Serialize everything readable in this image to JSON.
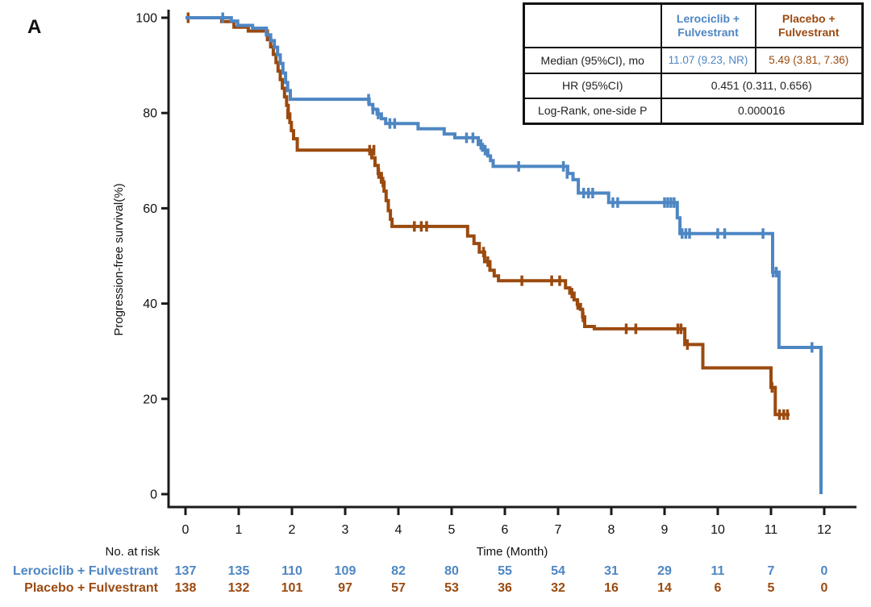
{
  "panel": {
    "label": "A"
  },
  "colors": {
    "lerociclib": "#4E86C3",
    "placebo": "#9B4A0F",
    "axis": "#1A1A1A"
  },
  "stats_table": {
    "arm1_header_line1": "Lerociclib +",
    "arm1_header_line2": "Fulvestrant",
    "arm2_header_line1": "Placebo +",
    "arm2_header_line2": "Fulvestrant",
    "row_median_label": "Median (95%CI), mo",
    "row_median_arm1": "11.07 (9.23, NR)",
    "row_median_arm2": "5.49 (3.81, 7.36)",
    "row_hr_label": "HR (95%CI)",
    "row_hr_value": "0.451 (0.311, 0.656)",
    "row_logrank_label": "Log-Rank, one-side P",
    "row_logrank_value": "0.000016"
  },
  "chart_data": {
    "type": "line",
    "subtype": "kaplan-meier-step",
    "xlabel": "Time (Month)",
    "ylabel": "Progression-free survival(%)",
    "xlim": [
      0,
      12.6
    ],
    "ylim": [
      0,
      100
    ],
    "xticks": [
      0,
      1,
      2,
      3,
      4,
      5,
      6,
      7,
      8,
      9,
      10,
      11,
      12
    ],
    "yticks": [
      0,
      20,
      40,
      60,
      80,
      100
    ],
    "grid": false,
    "series": [
      {
        "name": "Placebo + Fulvestrant",
        "color": "#9B4A0F",
        "median_95ci_mo": "5.49 (3.81, 7.36)",
        "steps": [
          [
            0,
            100
          ],
          [
            0.68,
            99.2
          ],
          [
            0.91,
            98
          ],
          [
            1.18,
            97.2
          ],
          [
            1.54,
            95.4
          ],
          [
            1.6,
            93.9
          ],
          [
            1.65,
            92.3
          ],
          [
            1.7,
            90.6
          ],
          [
            1.74,
            88.8
          ],
          [
            1.78,
            87
          ],
          [
            1.82,
            85.2
          ],
          [
            1.86,
            83.4
          ],
          [
            1.9,
            81.6
          ],
          [
            1.93,
            79.8
          ],
          [
            1.96,
            78
          ],
          [
            1.99,
            76.3
          ],
          [
            2.03,
            74.6
          ],
          [
            2.1,
            72.2
          ],
          [
            3.5,
            70.6
          ],
          [
            3.56,
            69
          ],
          [
            3.62,
            67.3
          ],
          [
            3.68,
            65.5
          ],
          [
            3.73,
            63.6
          ],
          [
            3.77,
            61.6
          ],
          [
            3.81,
            59.5
          ],
          [
            3.85,
            57.7
          ],
          [
            3.88,
            56.2
          ],
          [
            5.3,
            54.2
          ],
          [
            5.42,
            52.6
          ],
          [
            5.52,
            50.8
          ],
          [
            5.62,
            48.8
          ],
          [
            5.72,
            47
          ],
          [
            5.8,
            45.8
          ],
          [
            5.88,
            44.8
          ],
          [
            7.14,
            43.3
          ],
          [
            7.22,
            42.2
          ],
          [
            7.3,
            40.8
          ],
          [
            7.36,
            39.8
          ],
          [
            7.42,
            38.8
          ],
          [
            7.46,
            37.2
          ],
          [
            7.5,
            35.2
          ],
          [
            7.68,
            34.7
          ],
          [
            9.38,
            31.4
          ],
          [
            9.72,
            26.5
          ],
          [
            11.0,
            22.4
          ],
          [
            11.08,
            16.7
          ],
          [
            11.35,
            16.7
          ]
        ],
        "censors": [
          [
            0.05,
            100
          ],
          [
            1.92,
            79.8
          ],
          [
            3.46,
            72.2
          ],
          [
            3.54,
            72.2
          ],
          [
            3.63,
            67.3
          ],
          [
            3.71,
            65.5
          ],
          [
            4.3,
            56.2
          ],
          [
            4.43,
            56.2
          ],
          [
            4.53,
            56.2
          ],
          [
            5.6,
            50.8
          ],
          [
            5.68,
            48.8
          ],
          [
            6.32,
            44.8
          ],
          [
            6.88,
            44.8
          ],
          [
            7.03,
            44.8
          ],
          [
            7.26,
            42.2
          ],
          [
            7.37,
            39.8
          ],
          [
            7.47,
            37.2
          ],
          [
            8.28,
            34.7
          ],
          [
            8.46,
            34.7
          ],
          [
            9.25,
            34.7
          ],
          [
            9.31,
            34.7
          ],
          [
            9.43,
            31.4
          ],
          [
            11.02,
            22.4
          ],
          [
            11.16,
            16.7
          ],
          [
            11.24,
            16.7
          ],
          [
            11.31,
            16.7
          ]
        ]
      },
      {
        "name": "Lerociclib + Fulvestrant",
        "color": "#4E86C3",
        "median_95ci_mo": "11.07 (9.23, NR)",
        "steps": [
          [
            0,
            100
          ],
          [
            0.86,
            99.3
          ],
          [
            0.98,
            98.4
          ],
          [
            1.26,
            97.8
          ],
          [
            1.52,
            96.4
          ],
          [
            1.6,
            95.2
          ],
          [
            1.67,
            93.8
          ],
          [
            1.73,
            92.2
          ],
          [
            1.78,
            90.4
          ],
          [
            1.83,
            88.4
          ],
          [
            1.88,
            86.4
          ],
          [
            1.92,
            84.7
          ],
          [
            1.97,
            82.9
          ],
          [
            3.45,
            81.8
          ],
          [
            3.52,
            80.8
          ],
          [
            3.6,
            79.8
          ],
          [
            3.68,
            78.8
          ],
          [
            3.76,
            77.8
          ],
          [
            4.37,
            76.7
          ],
          [
            4.86,
            75.6
          ],
          [
            5.06,
            74.8
          ],
          [
            5.5,
            73.4
          ],
          [
            5.58,
            72.2
          ],
          [
            5.68,
            71
          ],
          [
            5.73,
            70
          ],
          [
            5.78,
            68.8
          ],
          [
            7.18,
            67.3
          ],
          [
            7.28,
            66
          ],
          [
            7.38,
            63.2
          ],
          [
            7.95,
            61.2
          ],
          [
            9.24,
            58
          ],
          [
            9.29,
            54.7
          ],
          [
            11.03,
            46.6
          ],
          [
            11.15,
            30.8
          ],
          [
            11.94,
            0
          ]
        ],
        "censors": [
          [
            0.7,
            100
          ],
          [
            3.44,
            82.9
          ],
          [
            3.52,
            80.8
          ],
          [
            3.62,
            79.8
          ],
          [
            3.84,
            77.8
          ],
          [
            3.93,
            77.8
          ],
          [
            5.28,
            74.8
          ],
          [
            5.4,
            74.8
          ],
          [
            5.55,
            73.4
          ],
          [
            5.63,
            72.2
          ],
          [
            6.26,
            68.8
          ],
          [
            7.1,
            68.8
          ],
          [
            7.17,
            67.3
          ],
          [
            7.48,
            63.2
          ],
          [
            7.57,
            63.2
          ],
          [
            7.65,
            63.2
          ],
          [
            8.03,
            61.2
          ],
          [
            8.12,
            61.2
          ],
          [
            9.0,
            61.2
          ],
          [
            9.06,
            61.2
          ],
          [
            9.12,
            61.2
          ],
          [
            9.18,
            61.2
          ],
          [
            9.33,
            54.7
          ],
          [
            9.4,
            54.7
          ],
          [
            9.47,
            54.7
          ],
          [
            10.0,
            54.7
          ],
          [
            10.13,
            54.7
          ],
          [
            10.85,
            54.7
          ],
          [
            11.04,
            46.6
          ],
          [
            11.1,
            46.6
          ],
          [
            11.77,
            30.8
          ]
        ]
      }
    ],
    "hr_95ci": "0.451 (0.311, 0.656)",
    "logrank_one_side_p": "0.000016",
    "risk_table": {
      "title": "No. at risk",
      "times": [
        0,
        1,
        2,
        3,
        4,
        5,
        6,
        7,
        8,
        9,
        10,
        11,
        12
      ],
      "rows": [
        {
          "name": "Lerociclib + Fulvestrant",
          "color": "#4E86C3",
          "counts": [
            137,
            135,
            110,
            109,
            82,
            80,
            55,
            54,
            31,
            29,
            11,
            7,
            0
          ]
        },
        {
          "name": "Placebo + Fulvestrant",
          "color": "#9B4A0F",
          "counts": [
            138,
            132,
            101,
            97,
            57,
            53,
            36,
            32,
            16,
            14,
            6,
            5,
            0
          ]
        }
      ]
    }
  }
}
